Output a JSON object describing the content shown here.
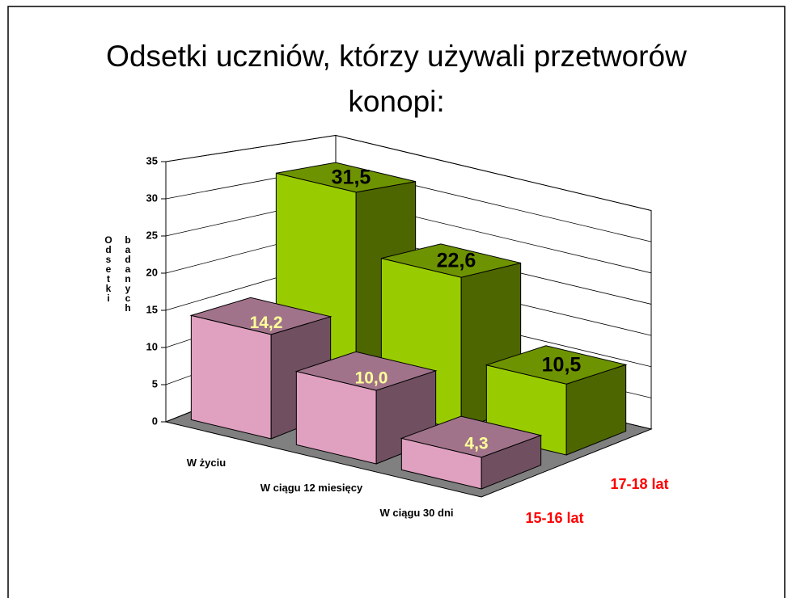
{
  "chart_data": {
    "type": "bar3d",
    "title": "Odsetki uczniów, którzy używali przetworów konopi:",
    "ylabel": "Odsetki badanych",
    "categories": [
      "W życiu",
      "W ciągu 12 miesięcy",
      "W ciągu 30 dni"
    ],
    "series": [
      {
        "name": "15-16 lat",
        "color": "#e0a0c0",
        "values": [
          14.2,
          10.0,
          4.3
        ],
        "value_labels": [
          "14,2",
          "10,0",
          "4,3"
        ]
      },
      {
        "name": "17-18 lat",
        "color": "#99cc00",
        "values": [
          31.5,
          22.6,
          10.5
        ],
        "value_labels": [
          "31,5",
          "22,6",
          "10,5"
        ]
      }
    ],
    "ylim": [
      0,
      35
    ],
    "yticks": [
      0,
      5,
      10,
      15,
      20,
      25,
      30,
      35
    ],
    "grid": true
  }
}
